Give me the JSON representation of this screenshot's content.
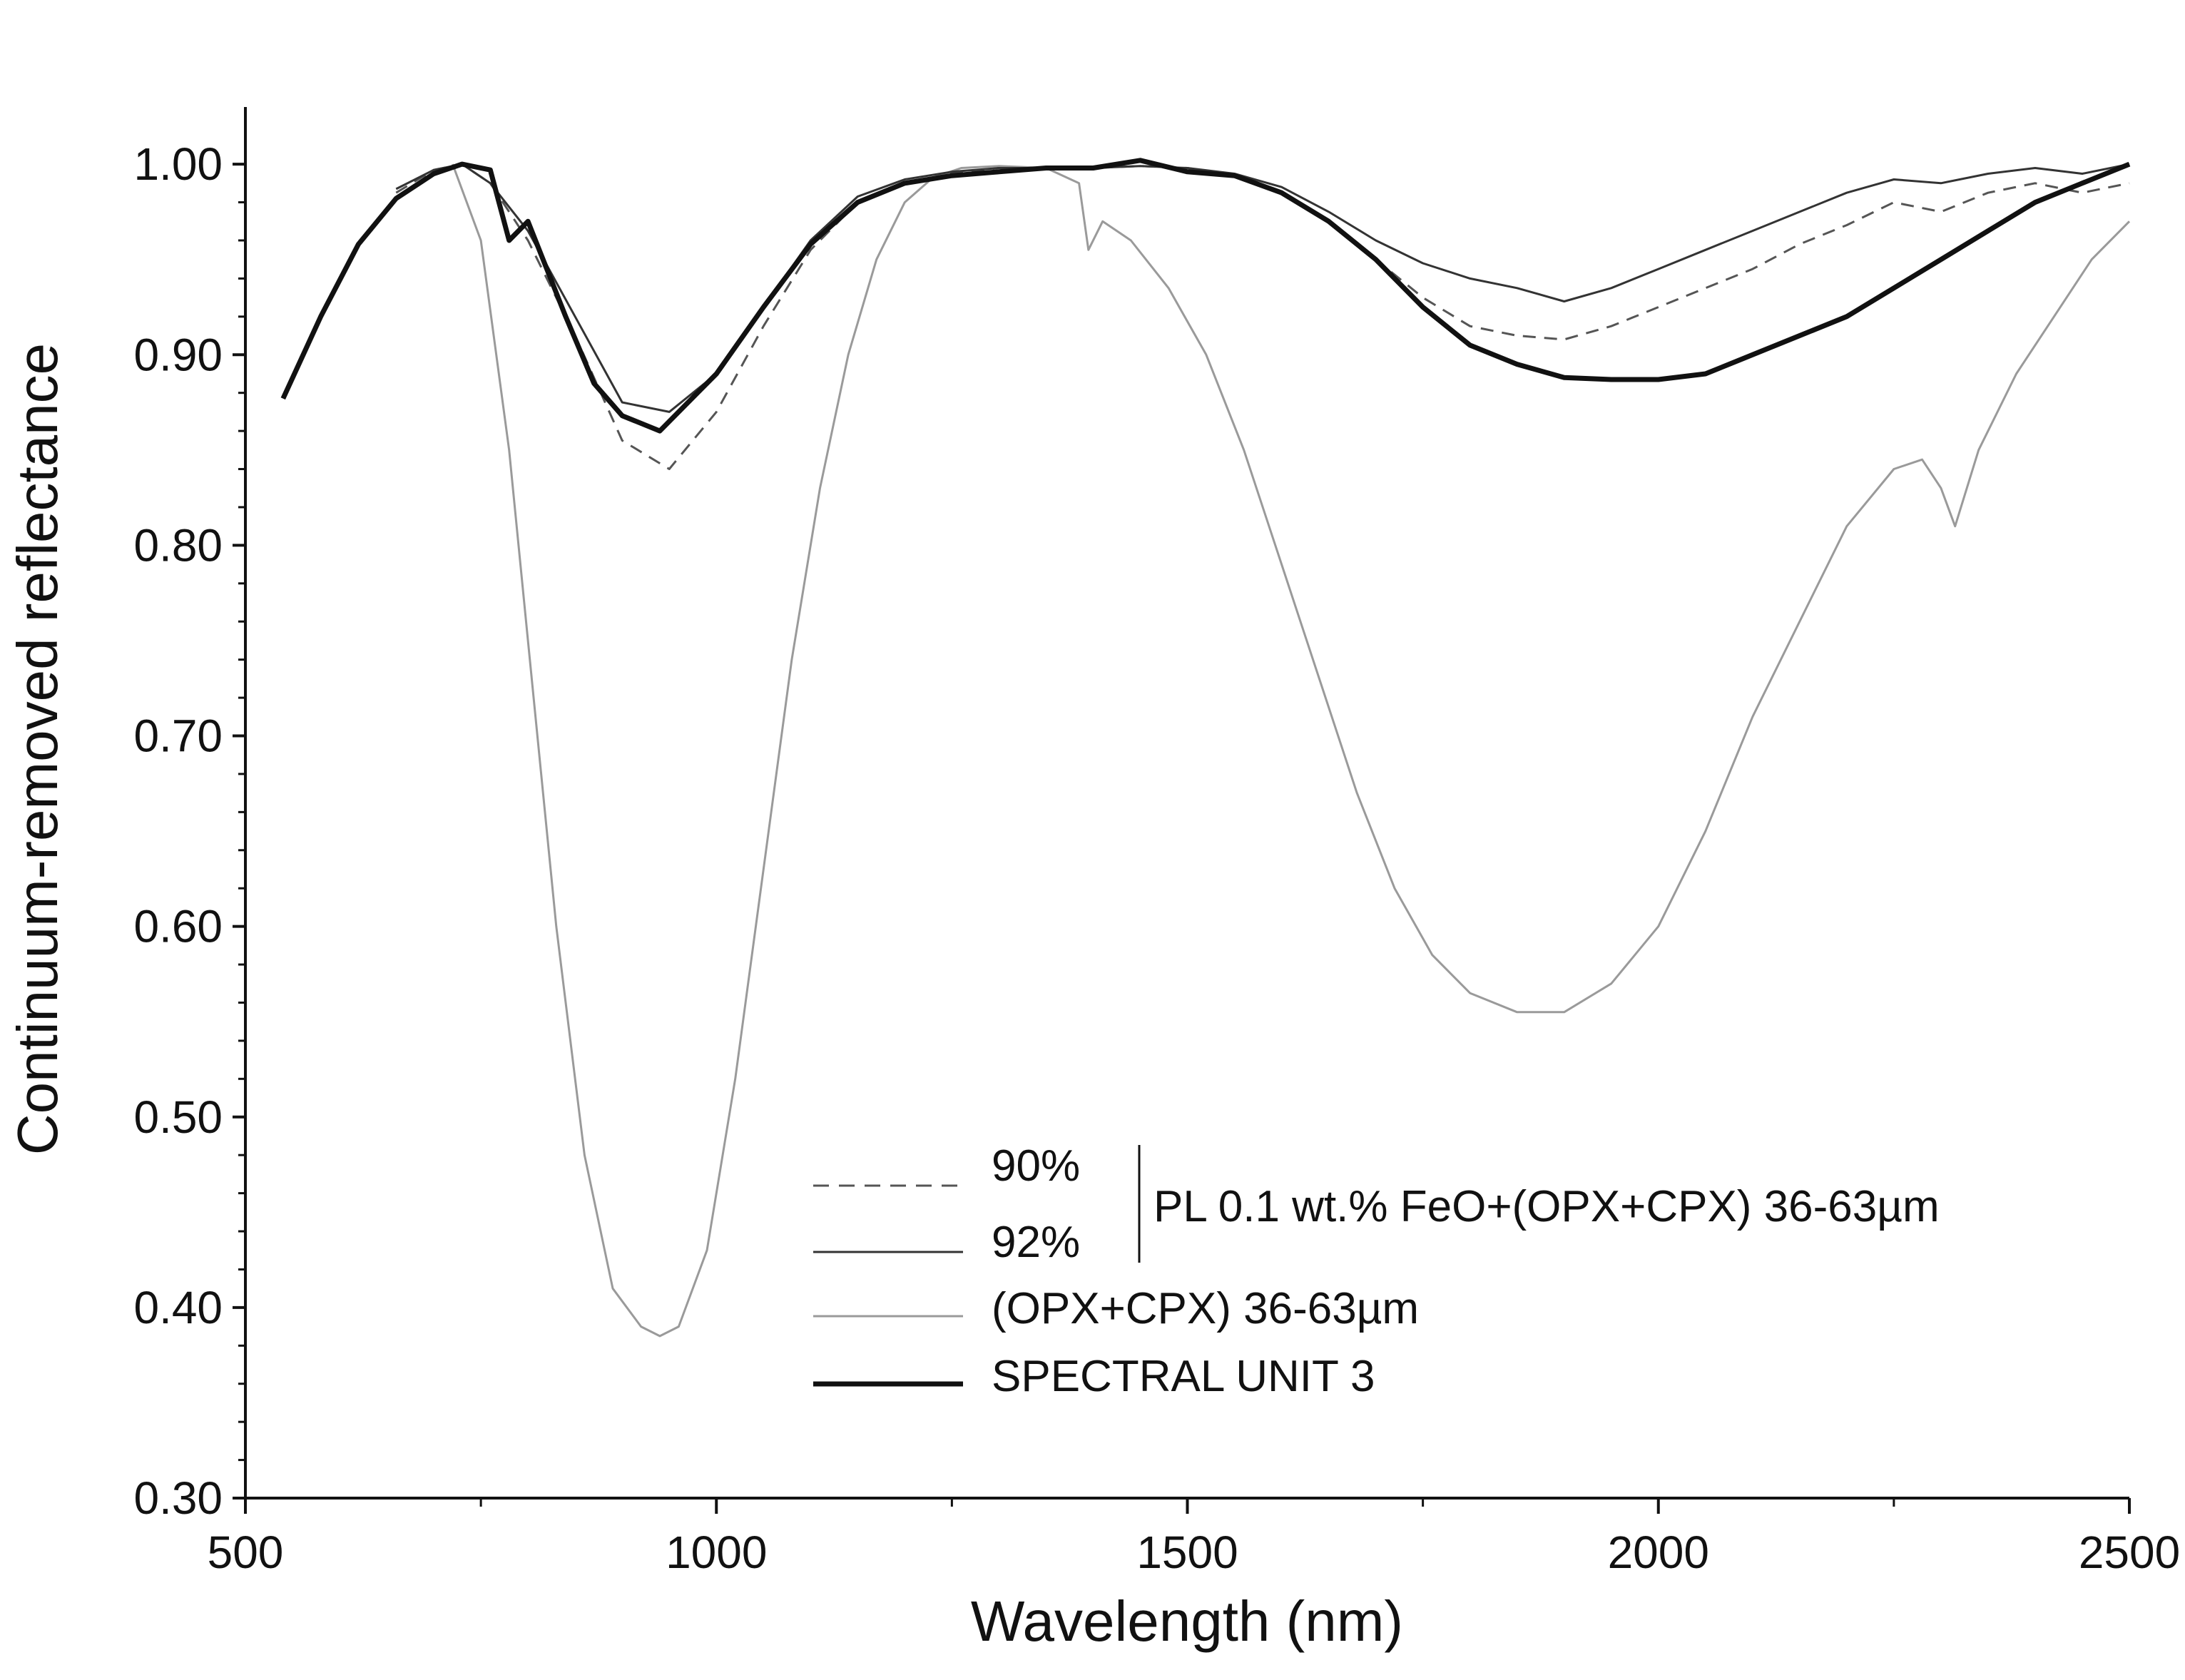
{
  "chart_data": {
    "type": "line",
    "title": "",
    "xlabel": "Wavelength (nm)",
    "ylabel": "Continuum-removed reflectance",
    "xlim": [
      500,
      2500
    ],
    "ylim": [
      0.3,
      1.03
    ],
    "x_ticks": [
      500,
      1000,
      1500,
      2000,
      2500
    ],
    "y_ticks": [
      0.3,
      0.4,
      0.5,
      0.6,
      0.7,
      0.8,
      0.9,
      1.0
    ],
    "x_tick_labels": [
      "500",
      "1000",
      "1500",
      "2000",
      "2500"
    ],
    "y_tick_labels": [
      "0.30",
      "0.40",
      "0.50",
      "0.60",
      "0.70",
      "0.80",
      "0.90",
      "1.00"
    ],
    "grid": false,
    "legend_position": "bottom-center",
    "legend": {
      "group_label": "PL 0.1 wt.% FeO+(OPX+CPX) 36-63µm",
      "entries": [
        "90%",
        "92%",
        "(OPX+CPX) 36-63µm",
        "SPECTRAL UNIT 3"
      ]
    },
    "series": [
      {
        "name": "90%",
        "style": "dashed",
        "color": "#555555",
        "x": [
          660,
          700,
          730,
          760,
          800,
          850,
          900,
          950,
          1000,
          1050,
          1100,
          1150,
          1200,
          1250,
          1300,
          1350,
          1400,
          1450,
          1500,
          1550,
          1600,
          1650,
          1700,
          1750,
          1800,
          1850,
          1900,
          1950,
          2000,
          2050,
          2100,
          2150,
          2200,
          2250,
          2300,
          2350,
          2400,
          2450,
          2500
        ],
        "values": [
          0.985,
          0.997,
          1.0,
          0.99,
          0.96,
          0.91,
          0.855,
          0.84,
          0.87,
          0.915,
          0.955,
          0.98,
          0.99,
          0.995,
          0.998,
          0.998,
          0.998,
          0.999,
          0.998,
          0.994,
          0.985,
          0.97,
          0.95,
          0.93,
          0.915,
          0.91,
          0.908,
          0.915,
          0.925,
          0.935,
          0.945,
          0.958,
          0.968,
          0.98,
          0.975,
          0.985,
          0.99,
          0.985,
          0.99
        ]
      },
      {
        "name": "92%",
        "style": "solid-thin",
        "color": "#333333",
        "x": [
          660,
          700,
          730,
          760,
          800,
          850,
          900,
          950,
          1000,
          1050,
          1100,
          1150,
          1200,
          1250,
          1300,
          1350,
          1400,
          1450,
          1500,
          1550,
          1600,
          1650,
          1700,
          1750,
          1800,
          1850,
          1900,
          1950,
          2000,
          2050,
          2100,
          2150,
          2200,
          2250,
          2300,
          2350,
          2400,
          2450,
          2500
        ],
        "values": [
          0.987,
          0.997,
          1.0,
          0.99,
          0.965,
          0.92,
          0.875,
          0.87,
          0.89,
          0.925,
          0.96,
          0.983,
          0.992,
          0.996,
          0.998,
          0.998,
          0.998,
          0.999,
          0.998,
          0.995,
          0.988,
          0.975,
          0.96,
          0.948,
          0.94,
          0.935,
          0.928,
          0.935,
          0.945,
          0.955,
          0.965,
          0.975,
          0.985,
          0.992,
          0.99,
          0.995,
          0.998,
          0.995,
          1.0
        ]
      },
      {
        "name": "(OPX+CPX) 36-63µm",
        "style": "solid-gray",
        "color": "#9a9a9a",
        "x": [
          720,
          750,
          780,
          800,
          830,
          860,
          890,
          920,
          940,
          960,
          990,
          1020,
          1050,
          1080,
          1110,
          1140,
          1170,
          1200,
          1230,
          1260,
          1300,
          1350,
          1385,
          1395,
          1410,
          1440,
          1480,
          1520,
          1560,
          1600,
          1640,
          1680,
          1720,
          1760,
          1800,
          1850,
          1900,
          1950,
          2000,
          2050,
          2100,
          2150,
          2200,
          2250,
          2280,
          2300,
          2315,
          2340,
          2380,
          2420,
          2460,
          2500
        ],
        "values": [
          1.0,
          0.96,
          0.85,
          0.75,
          0.6,
          0.48,
          0.41,
          0.39,
          0.385,
          0.39,
          0.43,
          0.52,
          0.63,
          0.74,
          0.83,
          0.9,
          0.95,
          0.98,
          0.993,
          0.998,
          0.999,
          0.998,
          0.99,
          0.955,
          0.97,
          0.96,
          0.935,
          0.9,
          0.85,
          0.79,
          0.73,
          0.67,
          0.62,
          0.585,
          0.565,
          0.555,
          0.555,
          0.57,
          0.6,
          0.65,
          0.71,
          0.76,
          0.81,
          0.84,
          0.845,
          0.83,
          0.81,
          0.85,
          0.89,
          0.92,
          0.95,
          0.97
        ]
      },
      {
        "name": "SPECTRAL UNIT 3",
        "style": "solid-thick",
        "color": "#111111",
        "x": [
          540,
          580,
          620,
          660,
          700,
          730,
          760,
          780,
          800,
          840,
          870,
          900,
          940,
          980,
          1000,
          1050,
          1100,
          1150,
          1200,
          1250,
          1300,
          1350,
          1400,
          1450,
          1500,
          1550,
          1600,
          1650,
          1700,
          1750,
          1800,
          1850,
          1900,
          1950,
          2000,
          2050,
          2100,
          2150,
          2200,
          2250,
          2300,
          2350,
          2400,
          2450,
          2500
        ],
        "values": [
          0.877,
          0.92,
          0.958,
          0.982,
          0.995,
          1.0,
          0.997,
          0.96,
          0.97,
          0.92,
          0.885,
          0.868,
          0.86,
          0.88,
          0.89,
          0.925,
          0.958,
          0.98,
          0.99,
          0.994,
          0.996,
          0.998,
          0.998,
          1.002,
          0.996,
          0.994,
          0.985,
          0.97,
          0.95,
          0.925,
          0.905,
          0.895,
          0.888,
          0.887,
          0.887,
          0.89,
          0.9,
          0.91,
          0.92,
          0.935,
          0.95,
          0.965,
          0.98,
          0.99,
          1.0
        ]
      }
    ]
  }
}
